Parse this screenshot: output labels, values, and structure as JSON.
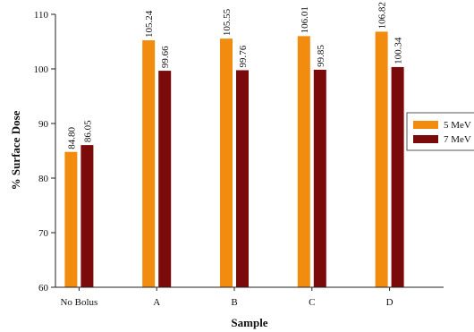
{
  "chart_data": {
    "type": "bar",
    "title": "",
    "xlabel": "Sample",
    "ylabel": "% Surface Dose",
    "ylim": [
      60,
      110
    ],
    "yticks": [
      "60",
      "70",
      "80",
      "90",
      "100",
      "110"
    ],
    "categories": [
      "No Bolus",
      "A",
      "B",
      "C",
      "D"
    ],
    "series": [
      {
        "name": "5 MeV",
        "values": [
          84.8,
          105.24,
          105.55,
          106.01,
          106.82
        ],
        "labels": [
          "84.80",
          "105.24",
          "105.55",
          "106.01",
          "106.82"
        ],
        "color": "#f28c0f"
      },
      {
        "name": "7 MeV",
        "values": [
          86.05,
          99.66,
          99.76,
          99.85,
          100.34
        ],
        "labels": [
          "86.05",
          "99.66",
          "99.76",
          "99.85",
          "100.34"
        ],
        "color": "#7b0b0b"
      }
    ],
    "grid": false,
    "legend_position": "right"
  }
}
